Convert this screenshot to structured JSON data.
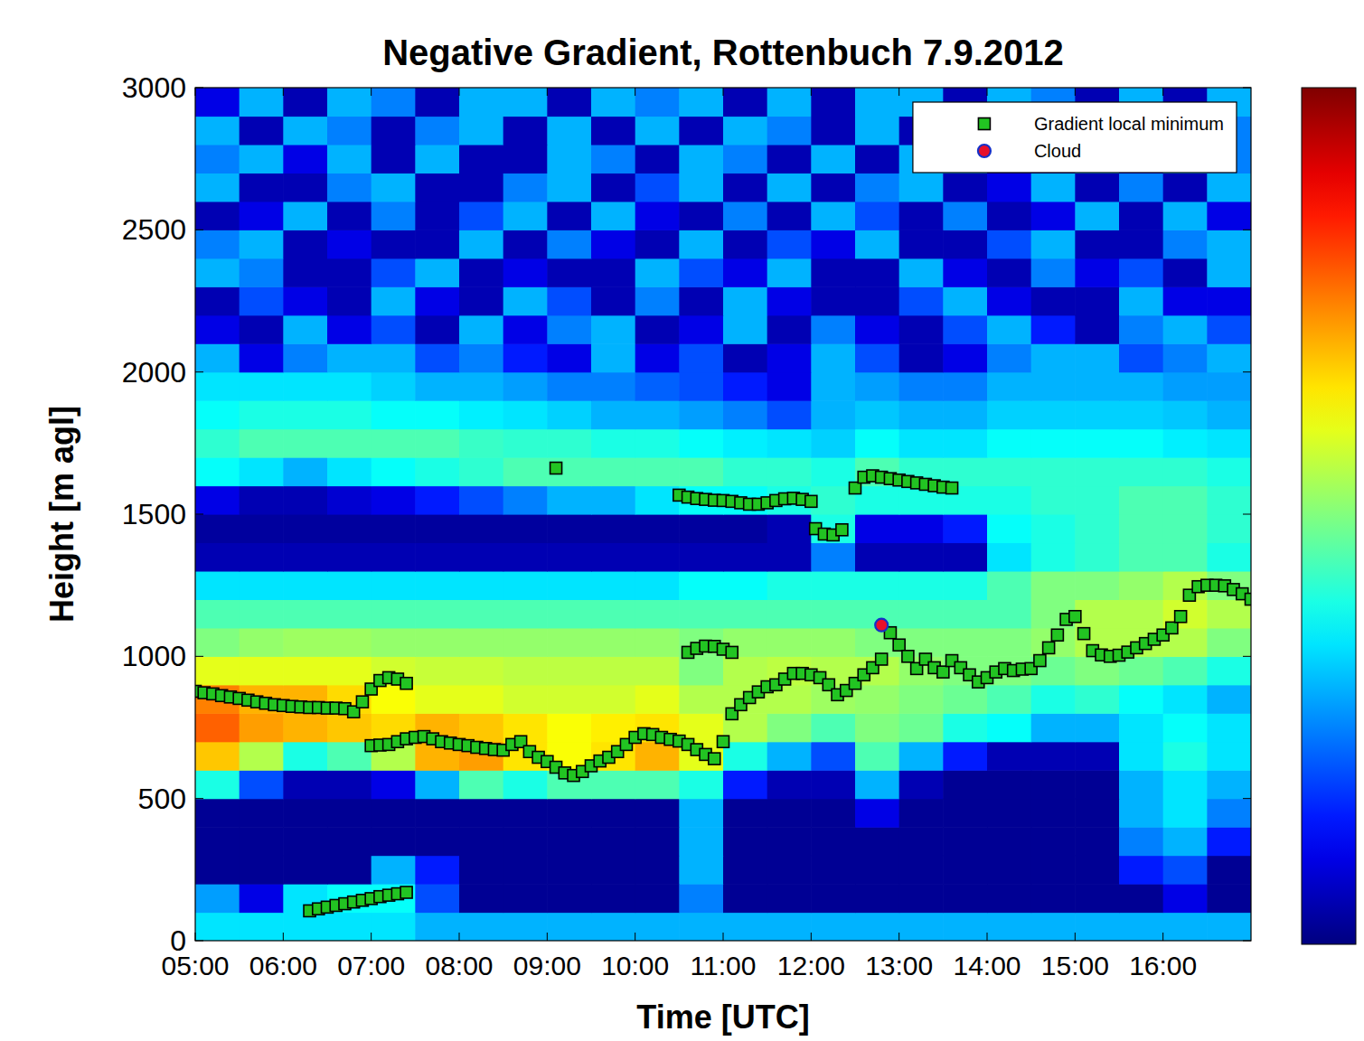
{
  "chart_data": {
    "type": "heatmap",
    "title": "Negative Gradient, Rottenbuch 7.9.2012",
    "x_label": "Time [UTC]",
    "y_label": "Height [m agl]",
    "xlim": [
      5,
      17
    ],
    "ylim": [
      0,
      3000
    ],
    "xticks": [
      {
        "value": 5,
        "label": "05:00"
      },
      {
        "value": 6,
        "label": "06:00"
      },
      {
        "value": 7,
        "label": "07:00"
      },
      {
        "value": 8,
        "label": "08:00"
      },
      {
        "value": 9,
        "label": "09:00"
      },
      {
        "value": 10,
        "label": "10:00"
      },
      {
        "value": 11,
        "label": "11:00"
      },
      {
        "value": 12,
        "label": "12:00"
      },
      {
        "value": 13,
        "label": "13:00"
      },
      {
        "value": 14,
        "label": "14:00"
      },
      {
        "value": 15,
        "label": "15:00"
      },
      {
        "value": 16,
        "label": "16:00"
      }
    ],
    "yticks": [
      0,
      500,
      1000,
      1500,
      2000,
      2500,
      3000
    ],
    "legend": "upper right",
    "heatmap": {
      "x": [
        5.25,
        5.75,
        6.25,
        6.75,
        7.25,
        7.75,
        8.25,
        8.75,
        9.25,
        9.75,
        10.25,
        10.75,
        11.25,
        11.75,
        12.25,
        12.75,
        13.25,
        13.75,
        14.25,
        14.75,
        15.25,
        15.75,
        16.25,
        16.75
      ],
      "y": [
        50,
        150,
        250,
        350,
        450,
        550,
        650,
        750,
        850,
        950,
        1050,
        1150,
        1250,
        1350,
        1450,
        1550,
        1650,
        1750,
        1850,
        1950,
        2050,
        2150,
        2250,
        2350,
        2450,
        2550,
        2650,
        2750,
        2850,
        2950
      ],
      "zlim": [
        0,
        1
      ],
      "z": [
        [
          0.35,
          0.35,
          0.35,
          0.35,
          0.35,
          0.3,
          0.3,
          0.3,
          0.3,
          0.3,
          0.3,
          0.3,
          0.3,
          0.3,
          0.3,
          0.3,
          0.3,
          0.3,
          0.3,
          0.3,
          0.3,
          0.3,
          0.3,
          0.3
        ],
        [
          0.28,
          0.1,
          0.35,
          0.38,
          0.38,
          0.2,
          0.02,
          0.02,
          0.02,
          0.02,
          0.02,
          0.25,
          0.02,
          0.02,
          0.02,
          0.02,
          0.02,
          0.02,
          0.02,
          0.02,
          0.02,
          0.02,
          0.1,
          0.02
        ],
        [
          0.02,
          0.02,
          0.02,
          0.02,
          0.3,
          0.15,
          0.02,
          0.02,
          0.02,
          0.02,
          0.02,
          0.3,
          0.02,
          0.02,
          0.02,
          0.02,
          0.02,
          0.02,
          0.02,
          0.02,
          0.02,
          0.15,
          0.2,
          0.02
        ],
        [
          0.02,
          0.02,
          0.02,
          0.02,
          0.02,
          0.02,
          0.02,
          0.02,
          0.02,
          0.02,
          0.02,
          0.3,
          0.02,
          0.02,
          0.02,
          0.02,
          0.02,
          0.02,
          0.02,
          0.02,
          0.02,
          0.25,
          0.3,
          0.15
        ],
        [
          0.02,
          0.02,
          0.02,
          0.02,
          0.02,
          0.02,
          0.02,
          0.02,
          0.02,
          0.02,
          0.02,
          0.3,
          0.02,
          0.02,
          0.02,
          0.1,
          0.02,
          0.02,
          0.02,
          0.02,
          0.02,
          0.3,
          0.35,
          0.25
        ],
        [
          0.4,
          0.2,
          0.05,
          0.05,
          0.1,
          0.3,
          0.45,
          0.4,
          0.45,
          0.45,
          0.45,
          0.4,
          0.15,
          0.05,
          0.05,
          0.3,
          0.05,
          0.02,
          0.02,
          0.02,
          0.02,
          0.3,
          0.35,
          0.3
        ],
        [
          0.68,
          0.55,
          0.4,
          0.45,
          0.55,
          0.7,
          0.72,
          0.65,
          0.62,
          0.65,
          0.7,
          0.6,
          0.4,
          0.3,
          0.2,
          0.45,
          0.3,
          0.15,
          0.05,
          0.05,
          0.05,
          0.35,
          0.4,
          0.35
        ],
        [
          0.78,
          0.72,
          0.7,
          0.68,
          0.66,
          0.7,
          0.68,
          0.65,
          0.62,
          0.64,
          0.65,
          0.6,
          0.55,
          0.5,
          0.45,
          0.5,
          0.48,
          0.4,
          0.38,
          0.3,
          0.3,
          0.35,
          0.38,
          0.35
        ],
        [
          0.75,
          0.7,
          0.7,
          0.66,
          0.62,
          0.6,
          0.6,
          0.58,
          0.58,
          0.58,
          0.6,
          0.55,
          0.55,
          0.55,
          0.53,
          0.52,
          0.5,
          0.48,
          0.45,
          0.4,
          0.42,
          0.38,
          0.35,
          0.3
        ],
        [
          0.6,
          0.6,
          0.6,
          0.6,
          0.58,
          0.57,
          0.57,
          0.56,
          0.56,
          0.56,
          0.56,
          0.5,
          0.55,
          0.56,
          0.55,
          0.55,
          0.52,
          0.5,
          0.5,
          0.48,
          0.5,
          0.48,
          0.45,
          0.4
        ],
        [
          0.5,
          0.52,
          0.53,
          0.53,
          0.52,
          0.52,
          0.52,
          0.52,
          0.52,
          0.52,
          0.52,
          0.5,
          0.52,
          0.52,
          0.52,
          0.5,
          0.5,
          0.5,
          0.5,
          0.52,
          0.55,
          0.55,
          0.55,
          0.5
        ],
        [
          0.45,
          0.45,
          0.45,
          0.45,
          0.45,
          0.45,
          0.45,
          0.45,
          0.45,
          0.45,
          0.45,
          0.45,
          0.45,
          0.45,
          0.45,
          0.45,
          0.45,
          0.45,
          0.45,
          0.5,
          0.55,
          0.55,
          0.58,
          0.55
        ],
        [
          0.35,
          0.35,
          0.35,
          0.35,
          0.35,
          0.35,
          0.35,
          0.35,
          0.35,
          0.35,
          0.35,
          0.38,
          0.38,
          0.4,
          0.4,
          0.4,
          0.4,
          0.4,
          0.45,
          0.5,
          0.5,
          0.52,
          0.55,
          0.5
        ],
        [
          0.05,
          0.05,
          0.05,
          0.05,
          0.05,
          0.05,
          0.05,
          0.05,
          0.05,
          0.05,
          0.05,
          0.05,
          0.05,
          0.05,
          0.25,
          0.05,
          0.05,
          0.05,
          0.35,
          0.4,
          0.42,
          0.45,
          0.45,
          0.4
        ],
        [
          0.03,
          0.03,
          0.03,
          0.03,
          0.03,
          0.03,
          0.03,
          0.03,
          0.03,
          0.03,
          0.03,
          0.03,
          0.03,
          0.05,
          0.4,
          0.1,
          0.1,
          0.15,
          0.38,
          0.4,
          0.42,
          0.45,
          0.45,
          0.42
        ],
        [
          0.1,
          0.05,
          0.05,
          0.08,
          0.1,
          0.15,
          0.2,
          0.25,
          0.3,
          0.3,
          0.35,
          0.38,
          0.38,
          0.4,
          0.42,
          0.4,
          0.4,
          0.4,
          0.4,
          0.42,
          0.42,
          0.45,
          0.45,
          0.42
        ],
        [
          0.38,
          0.35,
          0.3,
          0.35,
          0.38,
          0.4,
          0.42,
          0.45,
          0.45,
          0.45,
          0.45,
          0.45,
          0.42,
          0.42,
          0.4,
          0.45,
          0.42,
          0.42,
          0.42,
          0.42,
          0.42,
          0.42,
          0.42,
          0.4
        ],
        [
          0.42,
          0.45,
          0.45,
          0.45,
          0.45,
          0.45,
          0.43,
          0.42,
          0.42,
          0.4,
          0.4,
          0.38,
          0.36,
          0.35,
          0.33,
          0.38,
          0.35,
          0.35,
          0.38,
          0.38,
          0.38,
          0.38,
          0.36,
          0.35
        ],
        [
          0.38,
          0.4,
          0.4,
          0.4,
          0.38,
          0.38,
          0.36,
          0.35,
          0.33,
          0.3,
          0.3,
          0.28,
          0.25,
          0.2,
          0.3,
          0.32,
          0.3,
          0.3,
          0.33,
          0.33,
          0.33,
          0.33,
          0.32,
          0.3
        ],
        [
          0.35,
          0.35,
          0.35,
          0.35,
          0.33,
          0.3,
          0.3,
          0.28,
          0.25,
          0.25,
          0.22,
          0.2,
          0.15,
          0.1,
          0.3,
          0.28,
          0.25,
          0.25,
          0.3,
          0.3,
          0.3,
          0.3,
          0.28,
          0.28
        ],
        [
          0.3,
          0.1,
          0.25,
          0.3,
          0.3,
          0.2,
          0.25,
          0.15,
          0.1,
          0.3,
          0.1,
          0.2,
          0.05,
          0.1,
          0.3,
          0.2,
          0.05,
          0.1,
          0.25,
          0.3,
          0.3,
          0.2,
          0.25,
          0.3
        ],
        [
          0.1,
          0.05,
          0.3,
          0.1,
          0.2,
          0.05,
          0.3,
          0.1,
          0.25,
          0.3,
          0.05,
          0.1,
          0.3,
          0.05,
          0.25,
          0.1,
          0.05,
          0.2,
          0.3,
          0.15,
          0.05,
          0.25,
          0.3,
          0.2
        ],
        [
          0.05,
          0.2,
          0.1,
          0.05,
          0.3,
          0.1,
          0.05,
          0.3,
          0.2,
          0.05,
          0.25,
          0.05,
          0.3,
          0.1,
          0.05,
          0.05,
          0.2,
          0.3,
          0.1,
          0.05,
          0.05,
          0.3,
          0.1,
          0.1
        ],
        [
          0.3,
          0.25,
          0.05,
          0.05,
          0.2,
          0.3,
          0.05,
          0.1,
          0.05,
          0.05,
          0.3,
          0.2,
          0.1,
          0.3,
          0.05,
          0.05,
          0.3,
          0.1,
          0.05,
          0.25,
          0.1,
          0.2,
          0.05,
          0.3
        ],
        [
          0.25,
          0.3,
          0.05,
          0.1,
          0.05,
          0.05,
          0.3,
          0.05,
          0.25,
          0.1,
          0.05,
          0.3,
          0.05,
          0.2,
          0.1,
          0.3,
          0.05,
          0.05,
          0.2,
          0.3,
          0.05,
          0.05,
          0.25,
          0.3
        ],
        [
          0.05,
          0.1,
          0.3,
          0.05,
          0.25,
          0.05,
          0.2,
          0.3,
          0.05,
          0.3,
          0.1,
          0.05,
          0.25,
          0.05,
          0.3,
          0.2,
          0.05,
          0.25,
          0.05,
          0.1,
          0.3,
          0.05,
          0.3,
          0.1
        ],
        [
          0.3,
          0.05,
          0.05,
          0.25,
          0.3,
          0.05,
          0.05,
          0.25,
          0.3,
          0.05,
          0.2,
          0.3,
          0.05,
          0.3,
          0.05,
          0.25,
          0.3,
          0.05,
          0.1,
          0.3,
          0.05,
          0.25,
          0.05,
          0.3
        ],
        [
          0.25,
          0.3,
          0.1,
          0.3,
          0.05,
          0.3,
          0.05,
          0.05,
          0.3,
          0.25,
          0.05,
          0.3,
          0.25,
          0.05,
          0.3,
          0.05,
          0.3,
          0.3,
          0.05,
          0.05,
          0.3,
          0.1,
          0.3,
          0.25
        ],
        [
          0.3,
          0.05,
          0.3,
          0.25,
          0.05,
          0.25,
          0.3,
          0.05,
          0.3,
          0.05,
          0.3,
          0.05,
          0.3,
          0.25,
          0.05,
          0.3,
          0.05,
          0.25,
          0.3,
          0.05,
          0.3,
          0.05,
          0.3,
          0.25
        ],
        [
          0.1,
          0.3,
          0.05,
          0.3,
          0.25,
          0.05,
          0.3,
          0.3,
          0.05,
          0.3,
          0.25,
          0.3,
          0.05,
          0.3,
          0.05,
          0.3,
          0.3,
          0.05,
          0.3,
          0.25,
          0.05,
          0.3,
          0.05,
          0.3
        ]
      ]
    },
    "series": [
      {
        "name": "Gradient local minimum",
        "type": "scatter",
        "color": "#22c422",
        "marker": "square",
        "x": [
          5.0,
          5.1,
          5.2,
          5.3,
          5.4,
          5.5,
          5.6,
          5.7,
          5.8,
          5.9,
          6.0,
          6.1,
          6.2,
          6.3,
          6.4,
          6.5,
          6.6,
          6.7,
          6.8,
          6.9,
          7.0,
          7.1,
          7.2,
          7.3,
          7.4,
          6.3,
          6.4,
          6.5,
          6.6,
          6.7,
          6.8,
          6.9,
          7.0,
          7.1,
          7.2,
          7.3,
          7.4,
          7.0,
          7.1,
          7.2,
          7.3,
          7.4,
          7.5,
          7.6,
          7.7,
          7.8,
          7.9,
          8.0,
          8.1,
          8.2,
          8.3,
          8.4,
          8.5,
          8.6,
          8.7,
          8.8,
          8.9,
          9.0,
          9.1,
          9.2,
          9.3,
          9.4,
          9.5,
          9.6,
          9.7,
          9.8,
          9.9,
          10.0,
          10.1,
          10.2,
          10.3,
          10.4,
          10.5,
          10.6,
          10.7,
          10.8,
          10.9,
          11.0,
          11.1,
          11.2,
          11.3,
          11.4,
          11.5,
          11.6,
          11.7,
          11.8,
          11.9,
          12.0,
          12.1,
          12.2,
          12.3,
          12.4,
          12.5,
          12.6,
          12.7,
          12.8,
          12.9,
          13.0,
          13.1,
          13.2,
          13.3,
          13.4,
          13.5,
          13.6,
          13.7,
          13.8,
          13.9,
          14.0,
          14.1,
          14.2,
          14.3,
          14.4,
          14.5,
          14.6,
          14.7,
          14.8,
          14.9,
          15.0,
          15.1,
          15.2,
          15.3,
          15.4,
          15.5,
          15.6,
          15.7,
          15.8,
          15.9,
          16.0,
          16.1,
          16.2,
          16.3,
          16.4,
          16.5,
          16.6,
          16.7,
          16.8,
          16.9,
          17.0,
          10.6,
          10.7,
          10.8,
          10.9,
          11.0,
          11.1,
          10.5,
          10.6,
          10.7,
          10.8,
          10.9,
          11.0,
          11.1,
          11.2,
          11.3,
          11.4,
          11.5,
          11.6,
          11.7,
          11.8,
          11.9,
          12.0,
          12.05,
          12.15,
          12.25,
          12.35,
          12.5,
          12.6,
          12.7,
          12.8,
          12.9,
          13.0,
          13.1,
          13.2,
          13.3,
          13.4,
          13.5,
          13.6,
          9.1
        ],
        "y": [
          877,
          872,
          868,
          862,
          857,
          852,
          846,
          840,
          835,
          830,
          827,
          824,
          822,
          820,
          820,
          818,
          818,
          816,
          805,
          840,
          885,
          915,
          925,
          920,
          905,
          105,
          112,
          118,
          124,
          130,
          136,
          142,
          148,
          155,
          160,
          165,
          170,
          686,
          688,
          690,
          700,
          710,
          715,
          718,
          710,
          700,
          695,
          690,
          686,
          680,
          676,
          672,
          670,
          690,
          700,
          665,
          645,
          630,
          610,
          590,
          581,
          595,
          615,
          632,
          645,
          665,
          690,
          715,
          728,
          725,
          715,
          708,
          702,
          690,
          672,
          655,
          640,
          700,
          798,
          830,
          855,
          875,
          893,
          900,
          920,
          940,
          940,
          935,
          925,
          900,
          865,
          880,
          905,
          935,
          960,
          990,
          1083,
          1040,
          1000,
          957,
          990,
          960,
          945,
          985,
          960,
          935,
          910,
          925,
          945,
          957,
          950,
          955,
          957,
          985,
          1030,
          1075,
          1130,
          1140,
          1080,
          1020,
          1005,
          1000,
          1004,
          1015,
          1030,
          1045,
          1060,
          1075,
          1100,
          1140,
          1215,
          1245,
          1250,
          1250,
          1248,
          1235,
          1220,
          1201,
          1014,
          1028,
          1036,
          1035,
          1025,
          1014,
          1567,
          1560,
          1555,
          1552,
          1549,
          1548,
          1545,
          1540,
          1535,
          1535,
          1540,
          1548,
          1554,
          1556,
          1552,
          1545,
          1449,
          1430,
          1427,
          1445,
          1592,
          1630,
          1635,
          1630,
          1625,
          1620,
          1615,
          1610,
          1605,
          1600,
          1595,
          1592,
          1662
        ]
      },
      {
        "name": "Cloud",
        "type": "scatter",
        "color": "#e8102a",
        "marker": "circle",
        "x": [
          12.8
        ],
        "y": [
          1110
        ]
      }
    ]
  }
}
